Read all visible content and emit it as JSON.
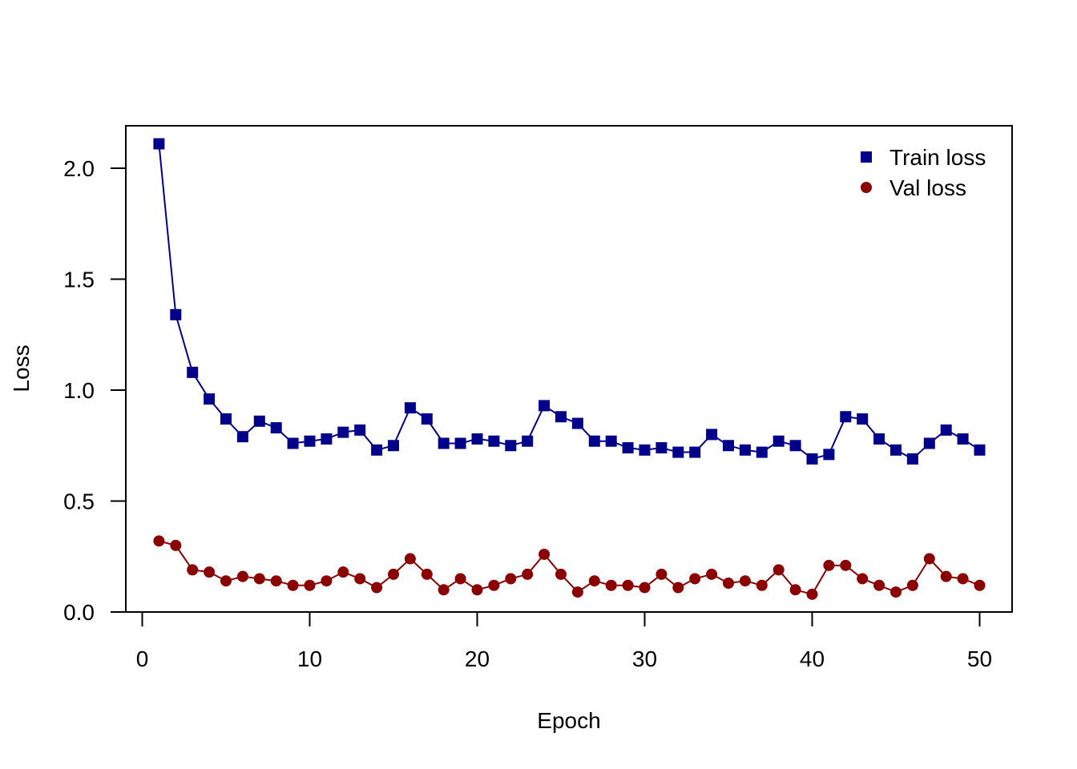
{
  "chart_data": {
    "type": "line",
    "xlabel": "Epoch",
    "ylabel": "Loss",
    "xlim": [
      -1,
      52
    ],
    "ylim": [
      0,
      2.2
    ],
    "x_ticks": [
      "0",
      "10",
      "20",
      "30",
      "40",
      "50"
    ],
    "y_ticks": [
      "0.0",
      "0.5",
      "1.0",
      "1.5",
      "2.0"
    ],
    "grid": false,
    "legend_position": "top-right",
    "x": [
      1,
      2,
      3,
      4,
      5,
      6,
      7,
      8,
      9,
      10,
      11,
      12,
      13,
      14,
      15,
      16,
      17,
      18,
      19,
      20,
      21,
      22,
      23,
      24,
      25,
      26,
      27,
      28,
      29,
      30,
      31,
      32,
      33,
      34,
      35,
      36,
      37,
      38,
      39,
      40,
      41,
      42,
      43,
      44,
      45,
      46,
      47,
      48,
      49,
      50
    ],
    "series": [
      {
        "name": "Train loss",
        "color": "#00008B",
        "marker": "square",
        "values": [
          2.11,
          1.34,
          1.08,
          0.96,
          0.87,
          0.79,
          0.86,
          0.83,
          0.76,
          0.77,
          0.78,
          0.81,
          0.82,
          0.73,
          0.75,
          0.92,
          0.87,
          0.76,
          0.76,
          0.78,
          0.77,
          0.75,
          0.77,
          0.93,
          0.88,
          0.85,
          0.77,
          0.77,
          0.74,
          0.73,
          0.74,
          0.72,
          0.72,
          0.8,
          0.75,
          0.73,
          0.72,
          0.77,
          0.75,
          0.69,
          0.71,
          0.88,
          0.87,
          0.78,
          0.73,
          0.69,
          0.76,
          0.82,
          0.78,
          0.73
        ]
      },
      {
        "name": "Val loss",
        "color": "#8B0000",
        "marker": "circle",
        "values": [
          0.32,
          0.3,
          0.19,
          0.18,
          0.14,
          0.16,
          0.15,
          0.14,
          0.12,
          0.12,
          0.14,
          0.18,
          0.15,
          0.11,
          0.17,
          0.24,
          0.17,
          0.1,
          0.15,
          0.1,
          0.12,
          0.15,
          0.17,
          0.26,
          0.17,
          0.09,
          0.14,
          0.12,
          0.12,
          0.11,
          0.17,
          0.11,
          0.15,
          0.17,
          0.13,
          0.14,
          0.12,
          0.19,
          0.1,
          0.08,
          0.21,
          0.21,
          0.15,
          0.12,
          0.09,
          0.12,
          0.24,
          0.16,
          0.15,
          0.12
        ]
      }
    ]
  }
}
